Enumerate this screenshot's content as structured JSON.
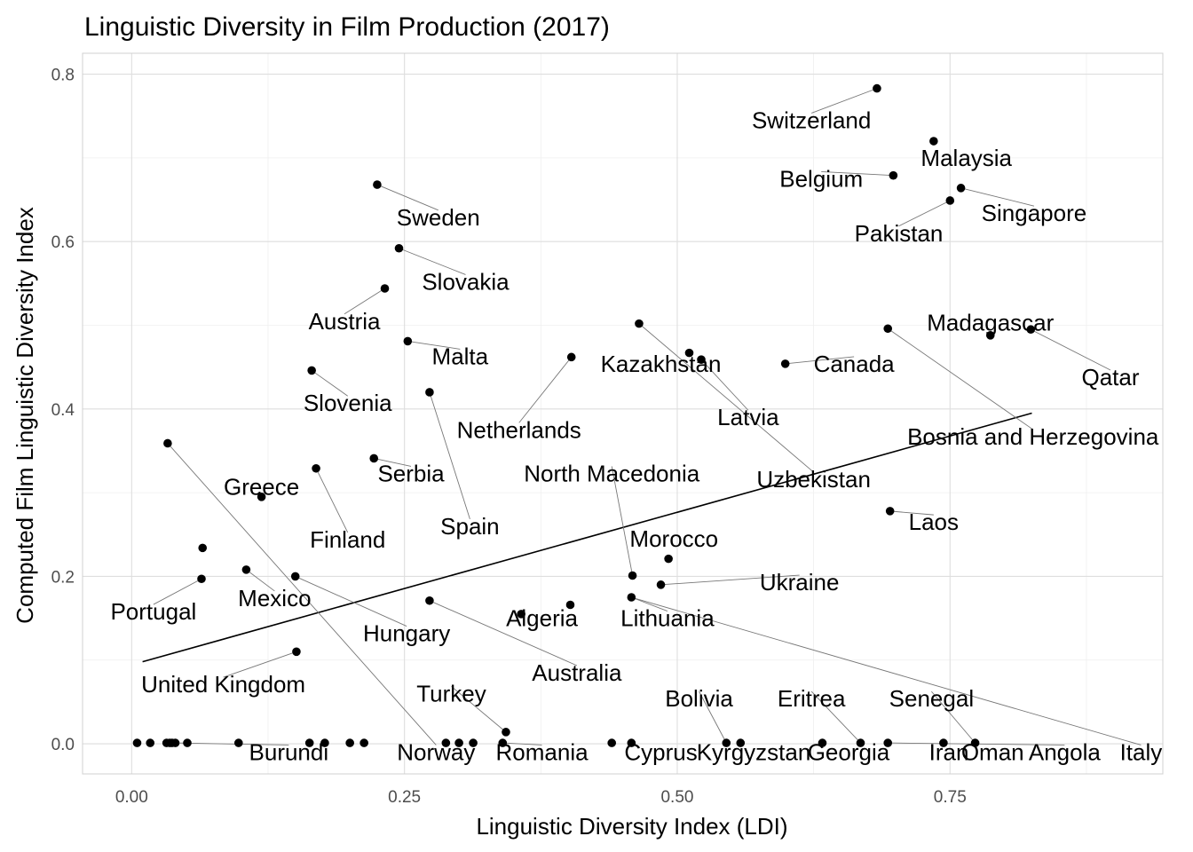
{
  "chart_data": {
    "type": "scatter",
    "title": "Linguistic Diversity in Film Production (2017)",
    "xlabel": "Linguistic Diversity Index (LDI)",
    "ylabel": "Computed Film Linguistic Diversity Index",
    "xlim": [
      -0.045,
      0.945
    ],
    "ylim": [
      -0.036,
      0.825
    ],
    "x_ticks": [
      0.0,
      0.25,
      0.5,
      0.75
    ],
    "x_tick_labels": [
      "0.00",
      "0.25",
      "0.50",
      "0.75"
    ],
    "y_ticks": [
      0.0,
      0.2,
      0.4,
      0.6,
      0.8
    ],
    "y_tick_labels": [
      "0.0",
      "0.2",
      "0.4",
      "0.6",
      "0.8"
    ],
    "grid": true,
    "trend_line": {
      "x": [
        0.01,
        0.825
      ],
      "y": [
        0.098,
        0.395
      ]
    },
    "points": [
      {
        "x": 0.683,
        "y": 0.783
      },
      {
        "x": 0.735,
        "y": 0.72
      },
      {
        "x": 0.698,
        "y": 0.679
      },
      {
        "x": 0.76,
        "y": 0.664
      },
      {
        "x": 0.75,
        "y": 0.649
      },
      {
        "x": 0.225,
        "y": 0.668
      },
      {
        "x": 0.245,
        "y": 0.592
      },
      {
        "x": 0.232,
        "y": 0.544
      },
      {
        "x": 0.253,
        "y": 0.481
      },
      {
        "x": 0.165,
        "y": 0.446
      },
      {
        "x": 0.273,
        "y": 0.42
      },
      {
        "x": 0.403,
        "y": 0.462
      },
      {
        "x": 0.465,
        "y": 0.502
      },
      {
        "x": 0.511,
        "y": 0.467
      },
      {
        "x": 0.522,
        "y": 0.459
      },
      {
        "x": 0.599,
        "y": 0.454
      },
      {
        "x": 0.693,
        "y": 0.496
      },
      {
        "x": 0.787,
        "y": 0.488
      },
      {
        "x": 0.824,
        "y": 0.495
      },
      {
        "x": 0.695,
        "y": 0.278
      },
      {
        "x": 0.033,
        "y": 0.359
      },
      {
        "x": 0.222,
        "y": 0.341
      },
      {
        "x": 0.169,
        "y": 0.329
      },
      {
        "x": 0.119,
        "y": 0.295
      },
      {
        "x": 0.065,
        "y": 0.234
      },
      {
        "x": 0.064,
        "y": 0.197
      },
      {
        "x": 0.105,
        "y": 0.208
      },
      {
        "x": 0.15,
        "y": 0.2
      },
      {
        "x": 0.151,
        "y": 0.11
      },
      {
        "x": 0.273,
        "y": 0.171
      },
      {
        "x": 0.357,
        "y": 0.155
      },
      {
        "x": 0.402,
        "y": 0.166
      },
      {
        "x": 0.459,
        "y": 0.201
      },
      {
        "x": 0.492,
        "y": 0.221
      },
      {
        "x": 0.485,
        "y": 0.19
      },
      {
        "x": 0.458,
        "y": 0.175
      },
      {
        "x": 0.343,
        "y": 0.014
      },
      {
        "x": 0.005,
        "y": 0.001
      },
      {
        "x": 0.017,
        "y": 0.001
      },
      {
        "x": 0.032,
        "y": 0.001
      },
      {
        "x": 0.035,
        "y": 0.001
      },
      {
        "x": 0.037,
        "y": 0.001
      },
      {
        "x": 0.04,
        "y": 0.001
      },
      {
        "x": 0.051,
        "y": 0.001
      },
      {
        "x": 0.098,
        "y": 0.001
      },
      {
        "x": 0.163,
        "y": 0.001
      },
      {
        "x": 0.177,
        "y": 0.001
      },
      {
        "x": 0.2,
        "y": 0.001
      },
      {
        "x": 0.213,
        "y": 0.001
      },
      {
        "x": 0.288,
        "y": 0.001
      },
      {
        "x": 0.3,
        "y": 0.001
      },
      {
        "x": 0.313,
        "y": 0.001
      },
      {
        "x": 0.34,
        "y": 0.001
      },
      {
        "x": 0.44,
        "y": 0.001
      },
      {
        "x": 0.458,
        "y": 0.001
      },
      {
        "x": 0.545,
        "y": 0.001
      },
      {
        "x": 0.558,
        "y": 0.001
      },
      {
        "x": 0.633,
        "y": 0.001
      },
      {
        "x": 0.668,
        "y": 0.001
      },
      {
        "x": 0.693,
        "y": 0.001
      },
      {
        "x": 0.744,
        "y": 0.001
      },
      {
        "x": 0.773,
        "y": 0.001
      }
    ],
    "labels": [
      {
        "text": "Switzerland",
        "x": 0.623,
        "y": 0.745,
        "px": 0.683,
        "py": 0.783
      },
      {
        "text": "Malaysia",
        "x": 0.765,
        "y": 0.7,
        "px": 0.735,
        "py": 0.72
      },
      {
        "text": "Belgium",
        "x": 0.632,
        "y": 0.675,
        "px": 0.698,
        "py": 0.679
      },
      {
        "text": "Singapore",
        "x": 0.827,
        "y": 0.634,
        "px": 0.76,
        "py": 0.664
      },
      {
        "text": "Pakistan",
        "x": 0.703,
        "y": 0.61,
        "px": 0.75,
        "py": 0.649
      },
      {
        "text": "Sweden",
        "x": 0.281,
        "y": 0.629,
        "px": 0.225,
        "py": 0.668
      },
      {
        "text": "Slovakia",
        "x": 0.306,
        "y": 0.552,
        "px": 0.245,
        "py": 0.592
      },
      {
        "text": "Austria",
        "x": 0.195,
        "y": 0.505,
        "px": 0.232,
        "py": 0.544
      },
      {
        "text": "Malta",
        "x": 0.301,
        "y": 0.463,
        "px": 0.253,
        "py": 0.481
      },
      {
        "text": "Slovenia",
        "x": 0.198,
        "y": 0.407,
        "px": 0.165,
        "py": 0.446
      },
      {
        "text": "Netherlands",
        "x": 0.355,
        "y": 0.375,
        "px": 0.403,
        "py": 0.462
      },
      {
        "text": "Kazakhstan",
        "x": 0.485,
        "y": 0.454,
        "px": 0.511,
        "py": 0.467
      },
      {
        "text": "Canada",
        "x": 0.662,
        "y": 0.454,
        "px": 0.599,
        "py": 0.454
      },
      {
        "text": "Latvia",
        "x": 0.565,
        "y": 0.39,
        "px": 0.522,
        "py": 0.459
      },
      {
        "text": "Madagascar",
        "x": 0.787,
        "y": 0.503,
        "px": 0.787,
        "py": 0.488
      },
      {
        "text": "Qatar",
        "x": 0.897,
        "y": 0.438,
        "px": 0.824,
        "py": 0.495
      },
      {
        "text": "Bosnia and Herzegovina",
        "x": 0.826,
        "y": 0.367,
        "px": 0.693,
        "py": 0.496
      },
      {
        "text": "Uzbekistan",
        "x": 0.625,
        "y": 0.316,
        "px": 0.465,
        "py": 0.502
      },
      {
        "text": "Laos",
        "x": 0.735,
        "y": 0.265,
        "px": 0.695,
        "py": 0.278
      },
      {
        "text": "Serbia",
        "x": 0.256,
        "y": 0.323,
        "px": 0.222,
        "py": 0.341
      },
      {
        "text": "Greece",
        "x": 0.119,
        "y": 0.307,
        "px": 0.119,
        "py": 0.295
      },
      {
        "text": "Finland",
        "x": 0.198,
        "y": 0.244,
        "px": 0.169,
        "py": 0.329
      },
      {
        "text": "Spain",
        "x": 0.31,
        "y": 0.26,
        "px": 0.273,
        "py": 0.42
      },
      {
        "text": "North Macedonia",
        "x": 0.44,
        "y": 0.323,
        "px": 0.459,
        "py": 0.201
      },
      {
        "text": "Morocco",
        "x": 0.497,
        "y": 0.245,
        "px": 0.492,
        "py": 0.221
      },
      {
        "text": "Ukraine",
        "x": 0.612,
        "y": 0.193,
        "px": 0.485,
        "py": 0.19
      },
      {
        "text": "Portugal",
        "x": 0.02,
        "y": 0.158,
        "px": 0.064,
        "py": 0.197
      },
      {
        "text": "Mexico",
        "x": 0.131,
        "y": 0.174,
        "px": 0.105,
        "py": 0.208
      },
      {
        "text": "Hungary",
        "x": 0.252,
        "y": 0.132,
        "px": 0.15,
        "py": 0.2
      },
      {
        "text": "Algeria",
        "x": 0.376,
        "y": 0.15,
        "px": 0.357,
        "py": 0.155
      },
      {
        "text": "Lithuania",
        "x": 0.491,
        "y": 0.15,
        "px": 0.458,
        "py": 0.175
      },
      {
        "text": "Australia",
        "x": 0.408,
        "y": 0.085,
        "px": 0.273,
        "py": 0.171
      },
      {
        "text": "United Kingdom",
        "x": 0.084,
        "y": 0.071,
        "px": 0.151,
        "py": 0.11
      },
      {
        "text": "Turkey",
        "x": 0.293,
        "y": 0.06,
        "px": 0.343,
        "py": 0.014
      },
      {
        "text": "Bolivia",
        "x": 0.52,
        "y": 0.054,
        "px": 0.545,
        "py": 0.001
      },
      {
        "text": "Eritrea",
        "x": 0.623,
        "y": 0.054,
        "px": 0.668,
        "py": 0.001
      },
      {
        "text": "Senegal",
        "x": 0.733,
        "y": 0.054,
        "px": 0.773,
        "py": 0.001
      },
      {
        "text": "Burundi",
        "x": 0.144,
        "y": -0.01,
        "px": 0.04,
        "py": 0.001
      },
      {
        "text": "Norway",
        "x": 0.279,
        "y": -0.01,
        "px": 0.033,
        "py": 0.359
      },
      {
        "text": "Romania",
        "x": 0.376,
        "y": -0.01,
        "px": 0.34,
        "py": 0.001
      },
      {
        "text": "Cyprus",
        "x": 0.485,
        "y": -0.01,
        "px": 0.458,
        "py": 0.001
      },
      {
        "text": "Kyrgyzstan",
        "x": 0.57,
        "y": -0.01,
        "px": 0.558,
        "py": 0.001
      },
      {
        "text": "Georgia",
        "x": 0.657,
        "y": -0.01,
        "px": 0.633,
        "py": 0.001
      },
      {
        "text": "Iran",
        "x": 0.749,
        "y": -0.01,
        "px": 0.744,
        "py": 0.001
      },
      {
        "text": "Oman",
        "x": 0.789,
        "y": -0.01,
        "px": 0.773,
        "py": 0.001
      },
      {
        "text": "Angola",
        "x": 0.855,
        "y": -0.01,
        "px": 0.693,
        "py": 0.001
      },
      {
        "text": "Italy",
        "x": 0.925,
        "y": -0.01,
        "px": 0.458,
        "py": 0.175
      }
    ]
  }
}
